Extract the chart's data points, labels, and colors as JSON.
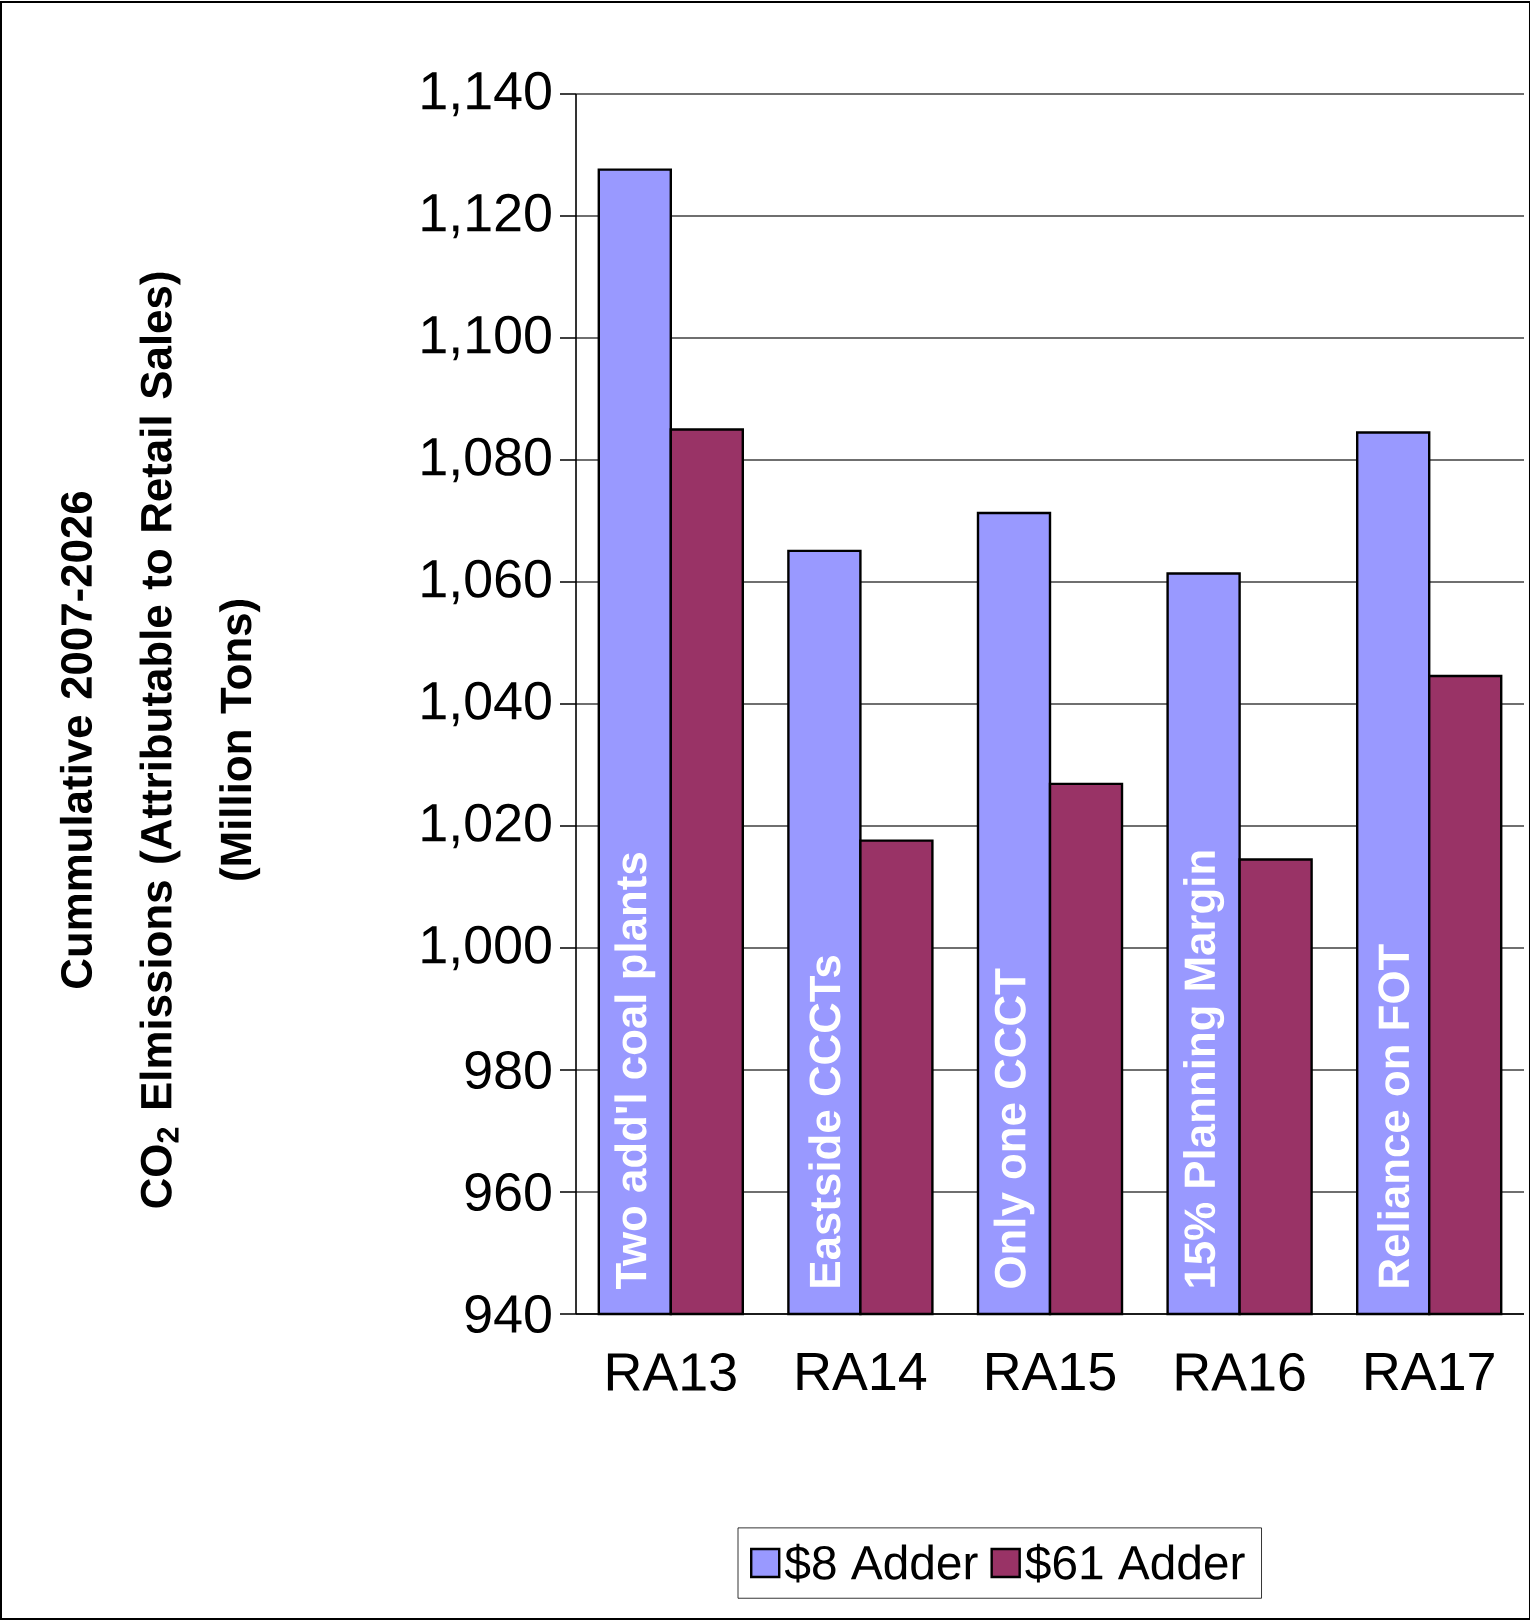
{
  "chart_data": {
    "type": "bar",
    "ylabel": "Cummulative 2007-2026\nCO$_{2}$ Elmissions (Attributable to Retail Sales)\n(Million Tons)",
    "categories": [
      "RA13",
      "RA14",
      "RA15",
      "RA16",
      "RA17"
    ],
    "series": [
      {
        "name": "$8 Adder",
        "color": "#9999ff",
        "values": [
          1127.6,
          1065.1,
          1071.3,
          1061.4,
          1084.5
        ]
      },
      {
        "name": "$61 Adder",
        "color": "#993366",
        "values": [
          1085.0,
          1017.6,
          1026.9,
          1014.5,
          1044.6
        ]
      }
    ],
    "ylim": [
      940,
      1140
    ],
    "yticks": [
      {
        "value": 940,
        "label": "940"
      },
      {
        "value": 960,
        "label": "960"
      },
      {
        "value": 980,
        "label": "980"
      },
      {
        "value": 1000,
        "label": "1,000"
      },
      {
        "value": 1020,
        "label": "1,020"
      },
      {
        "value": 1040,
        "label": "1,040"
      },
      {
        "value": 1060,
        "label": "1,060"
      },
      {
        "value": 1080,
        "label": "1,080"
      },
      {
        "value": 1100,
        "label": "1,100"
      },
      {
        "value": 1120,
        "label": "1,120"
      },
      {
        "value": 1140,
        "label": "1,140"
      }
    ],
    "grid": "y",
    "legend": "bottom",
    "annotations": [
      "Two add'l coal plants",
      "Eastside CCCTs",
      "Only one CCCT",
      "15% Planning Margin",
      "Reliance on FOT"
    ]
  }
}
